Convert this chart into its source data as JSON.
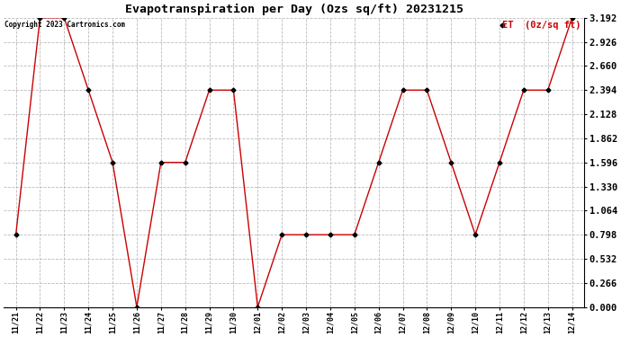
{
  "title": "Evapotranspiration per Day (Ozs sq/ft) 20231215",
  "copyright": "Copyright 2023 Cartronics.com",
  "legend_label": "ET  (0z/sq ft)",
  "x_labels": [
    "11/21",
    "11/22",
    "11/23",
    "11/24",
    "11/25",
    "11/26",
    "11/27",
    "11/28",
    "11/29",
    "11/30",
    "12/01",
    "12/02",
    "12/03",
    "12/04",
    "12/05",
    "12/06",
    "12/07",
    "12/08",
    "12/09",
    "12/10",
    "12/11",
    "12/12",
    "12/13",
    "12/14"
  ],
  "y_values": [
    0.798,
    3.192,
    3.192,
    2.394,
    1.596,
    0.0,
    1.596,
    1.596,
    2.394,
    2.394,
    0.0,
    0.798,
    0.798,
    0.798,
    0.798,
    1.596,
    2.394,
    2.394,
    1.596,
    0.798,
    1.596,
    2.394,
    2.394,
    3.192
  ],
  "line_color": "#cc0000",
  "marker_color": "#000000",
  "ylim": [
    0.0,
    3.192
  ],
  "yticks": [
    0.0,
    0.266,
    0.532,
    0.798,
    1.064,
    1.33,
    1.596,
    1.862,
    2.128,
    2.394,
    2.66,
    2.926,
    3.192
  ],
  "background_color": "#ffffff",
  "grid_color": "#bbbbbb",
  "title_fontsize": 9.5,
  "copyright_fontsize": 5.5,
  "legend_fontsize": 7.5,
  "ytick_fontsize": 7.5,
  "xtick_fontsize": 6.0
}
